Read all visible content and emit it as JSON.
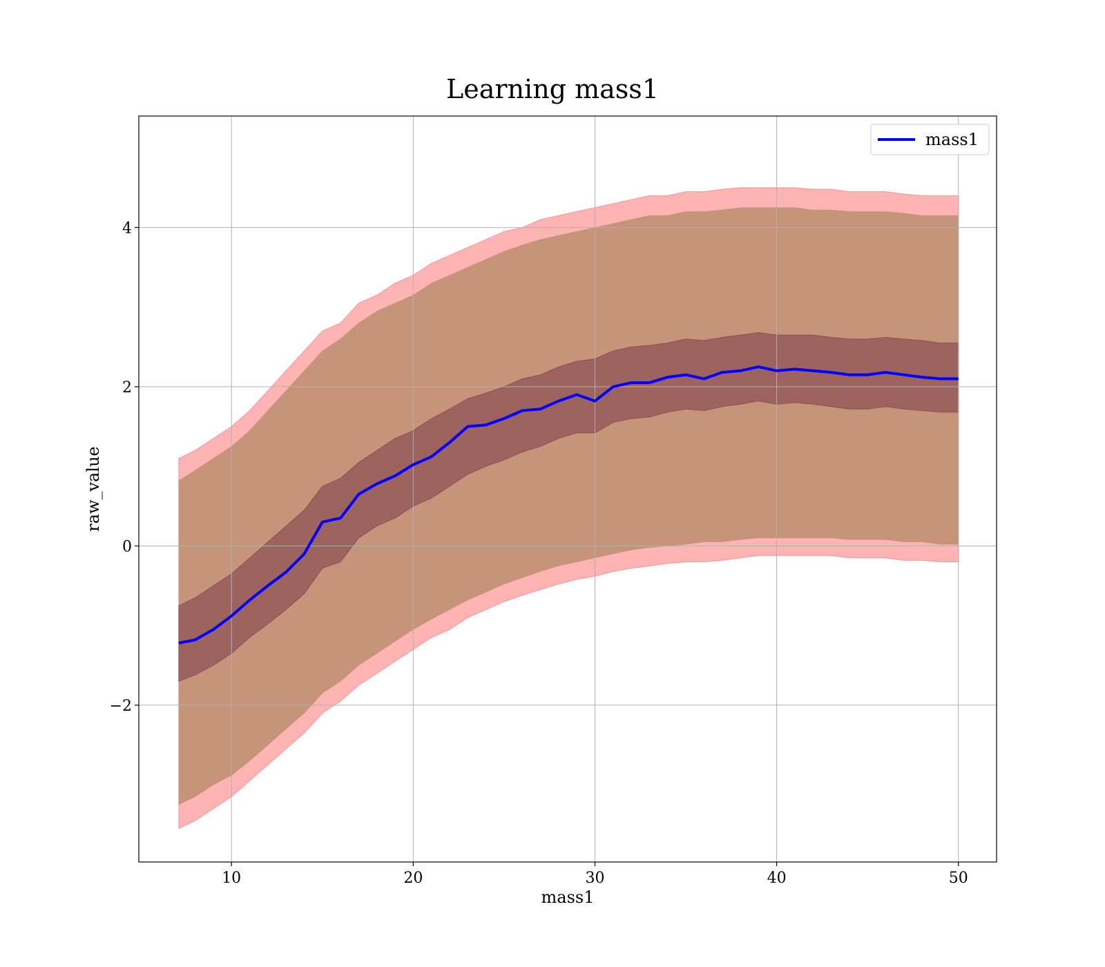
{
  "chart_data": {
    "type": "line",
    "title": "Learning mass1",
    "xlabel": "mass1",
    "ylabel": "raw_value",
    "xlim": [
      4.9,
      52.1
    ],
    "ylim": [
      -3.97,
      5.4
    ],
    "xticks": [
      10,
      20,
      30,
      40,
      50
    ],
    "yticks": [
      -2,
      0,
      2,
      4
    ],
    "xtick_labels": [
      "10",
      "20",
      "30",
      "40",
      "50"
    ],
    "ytick_labels": [
      "−2",
      "0",
      "2",
      "4"
    ],
    "grid": true,
    "legend": {
      "position": "top-right",
      "entries": [
        "mass1"
      ]
    },
    "colors": {
      "mean_line": "#0000ff",
      "outer_band": "#ff6a6a",
      "inner_band": "#7a3a4a",
      "overlap_fill": "#c59479",
      "grid": "#b0b0b0"
    },
    "series": [
      {
        "name": "mass1",
        "x": [
          7.1,
          8,
          9,
          10,
          11,
          12,
          13,
          14,
          15,
          16,
          17,
          18,
          19,
          20,
          21,
          22,
          23,
          24,
          25,
          26,
          27,
          28,
          29,
          30,
          31,
          32,
          33,
          34,
          35,
          36,
          37,
          38,
          39,
          40,
          41,
          42,
          43,
          44,
          45,
          46,
          47,
          48,
          49,
          50
        ],
        "mean": [
          -1.22,
          -1.18,
          -1.05,
          -0.88,
          -0.68,
          -0.5,
          -0.33,
          -0.1,
          0.3,
          0.35,
          0.65,
          0.78,
          0.88,
          1.02,
          1.12,
          1.3,
          1.5,
          1.52,
          1.6,
          1.7,
          1.72,
          1.82,
          1.9,
          1.82,
          2.0,
          2.05,
          2.05,
          2.12,
          2.15,
          2.1,
          2.18,
          2.2,
          2.25,
          2.2,
          2.22,
          2.2,
          2.18,
          2.15,
          2.15,
          2.18,
          2.15,
          2.12,
          2.1,
          2.1
        ]
      }
    ],
    "bands": [
      {
        "x": [
          7.1,
          8,
          9,
          10,
          11,
          12,
          13,
          14,
          15,
          16,
          17,
          18,
          19,
          20,
          21,
          22,
          23,
          24,
          25,
          26,
          27,
          28,
          29,
          30,
          31,
          32,
          33,
          34,
          35,
          36,
          37,
          38,
          39,
          40,
          41,
          42,
          43,
          44,
          45,
          46,
          47,
          48,
          49,
          50
        ],
        "upper": [
          1.1,
          1.2,
          1.35,
          1.5,
          1.7,
          1.95,
          2.2,
          2.45,
          2.7,
          2.8,
          3.05,
          3.15,
          3.3,
          3.4,
          3.55,
          3.65,
          3.75,
          3.85,
          3.95,
          4.0,
          4.1,
          4.15,
          4.2,
          4.25,
          4.3,
          4.35,
          4.4,
          4.4,
          4.45,
          4.45,
          4.48,
          4.5,
          4.5,
          4.5,
          4.5,
          4.48,
          4.48,
          4.45,
          4.45,
          4.45,
          4.42,
          4.4,
          4.4,
          4.4
        ],
        "lower": [
          -3.55,
          -3.45,
          -3.3,
          -3.15,
          -2.95,
          -2.75,
          -2.55,
          -2.35,
          -2.1,
          -1.95,
          -1.75,
          -1.6,
          -1.45,
          -1.3,
          -1.15,
          -1.05,
          -0.9,
          -0.8,
          -0.7,
          -0.62,
          -0.55,
          -0.48,
          -0.42,
          -0.38,
          -0.32,
          -0.28,
          -0.25,
          -0.22,
          -0.2,
          -0.2,
          -0.18,
          -0.15,
          -0.12,
          -0.12,
          -0.12,
          -0.12,
          -0.12,
          -0.15,
          -0.15,
          -0.15,
          -0.18,
          -0.18,
          -0.2,
          -0.2
        ]
      },
      {
        "x": [
          7.1,
          8,
          9,
          10,
          11,
          12,
          13,
          14,
          15,
          16,
          17,
          18,
          19,
          20,
          21,
          22,
          23,
          24,
          25,
          26,
          27,
          28,
          29,
          30,
          31,
          32,
          33,
          34,
          35,
          36,
          37,
          38,
          39,
          40,
          41,
          42,
          43,
          44,
          45,
          46,
          47,
          48,
          49,
          50
        ],
        "upper": [
          0.82,
          0.95,
          1.1,
          1.25,
          1.45,
          1.7,
          1.95,
          2.2,
          2.45,
          2.6,
          2.8,
          2.95,
          3.05,
          3.15,
          3.3,
          3.4,
          3.5,
          3.6,
          3.7,
          3.78,
          3.85,
          3.9,
          3.95,
          4.0,
          4.05,
          4.1,
          4.15,
          4.15,
          4.2,
          4.2,
          4.22,
          4.25,
          4.25,
          4.25,
          4.25,
          4.22,
          4.22,
          4.2,
          4.2,
          4.2,
          4.18,
          4.15,
          4.15,
          4.15
        ],
        "lower": [
          -3.25,
          -3.15,
          -3.0,
          -2.88,
          -2.7,
          -2.5,
          -2.3,
          -2.1,
          -1.85,
          -1.7,
          -1.5,
          -1.35,
          -1.2,
          -1.05,
          -0.92,
          -0.8,
          -0.68,
          -0.58,
          -0.48,
          -0.4,
          -0.32,
          -0.25,
          -0.2,
          -0.15,
          -0.1,
          -0.05,
          -0.02,
          0.0,
          0.02,
          0.05,
          0.05,
          0.08,
          0.1,
          0.1,
          0.1,
          0.1,
          0.1,
          0.08,
          0.08,
          0.08,
          0.05,
          0.05,
          0.02,
          0.02
        ]
      },
      {
        "x": [
          7.1,
          8,
          9,
          10,
          11,
          12,
          13,
          14,
          15,
          16,
          17,
          18,
          19,
          20,
          21,
          22,
          23,
          24,
          25,
          26,
          27,
          28,
          29,
          30,
          31,
          32,
          33,
          34,
          35,
          36,
          37,
          38,
          39,
          40,
          41,
          42,
          43,
          44,
          45,
          46,
          47,
          48,
          49,
          50
        ],
        "upper": [
          -0.75,
          -0.65,
          -0.5,
          -0.35,
          -0.15,
          0.05,
          0.25,
          0.45,
          0.75,
          0.85,
          1.05,
          1.2,
          1.35,
          1.45,
          1.6,
          1.72,
          1.85,
          1.92,
          2.0,
          2.1,
          2.15,
          2.25,
          2.32,
          2.35,
          2.45,
          2.5,
          2.52,
          2.55,
          2.6,
          2.58,
          2.62,
          2.65,
          2.68,
          2.65,
          2.65,
          2.65,
          2.62,
          2.6,
          2.6,
          2.62,
          2.6,
          2.58,
          2.55,
          2.55
        ],
        "lower": [
          -1.7,
          -1.62,
          -1.5,
          -1.35,
          -1.15,
          -0.98,
          -0.8,
          -0.6,
          -0.28,
          -0.2,
          0.1,
          0.25,
          0.35,
          0.5,
          0.6,
          0.75,
          0.9,
          1.0,
          1.08,
          1.18,
          1.25,
          1.35,
          1.42,
          1.42,
          1.55,
          1.6,
          1.62,
          1.68,
          1.72,
          1.7,
          1.75,
          1.78,
          1.82,
          1.78,
          1.8,
          1.78,
          1.75,
          1.72,
          1.72,
          1.75,
          1.72,
          1.7,
          1.68,
          1.68
        ]
      }
    ]
  }
}
